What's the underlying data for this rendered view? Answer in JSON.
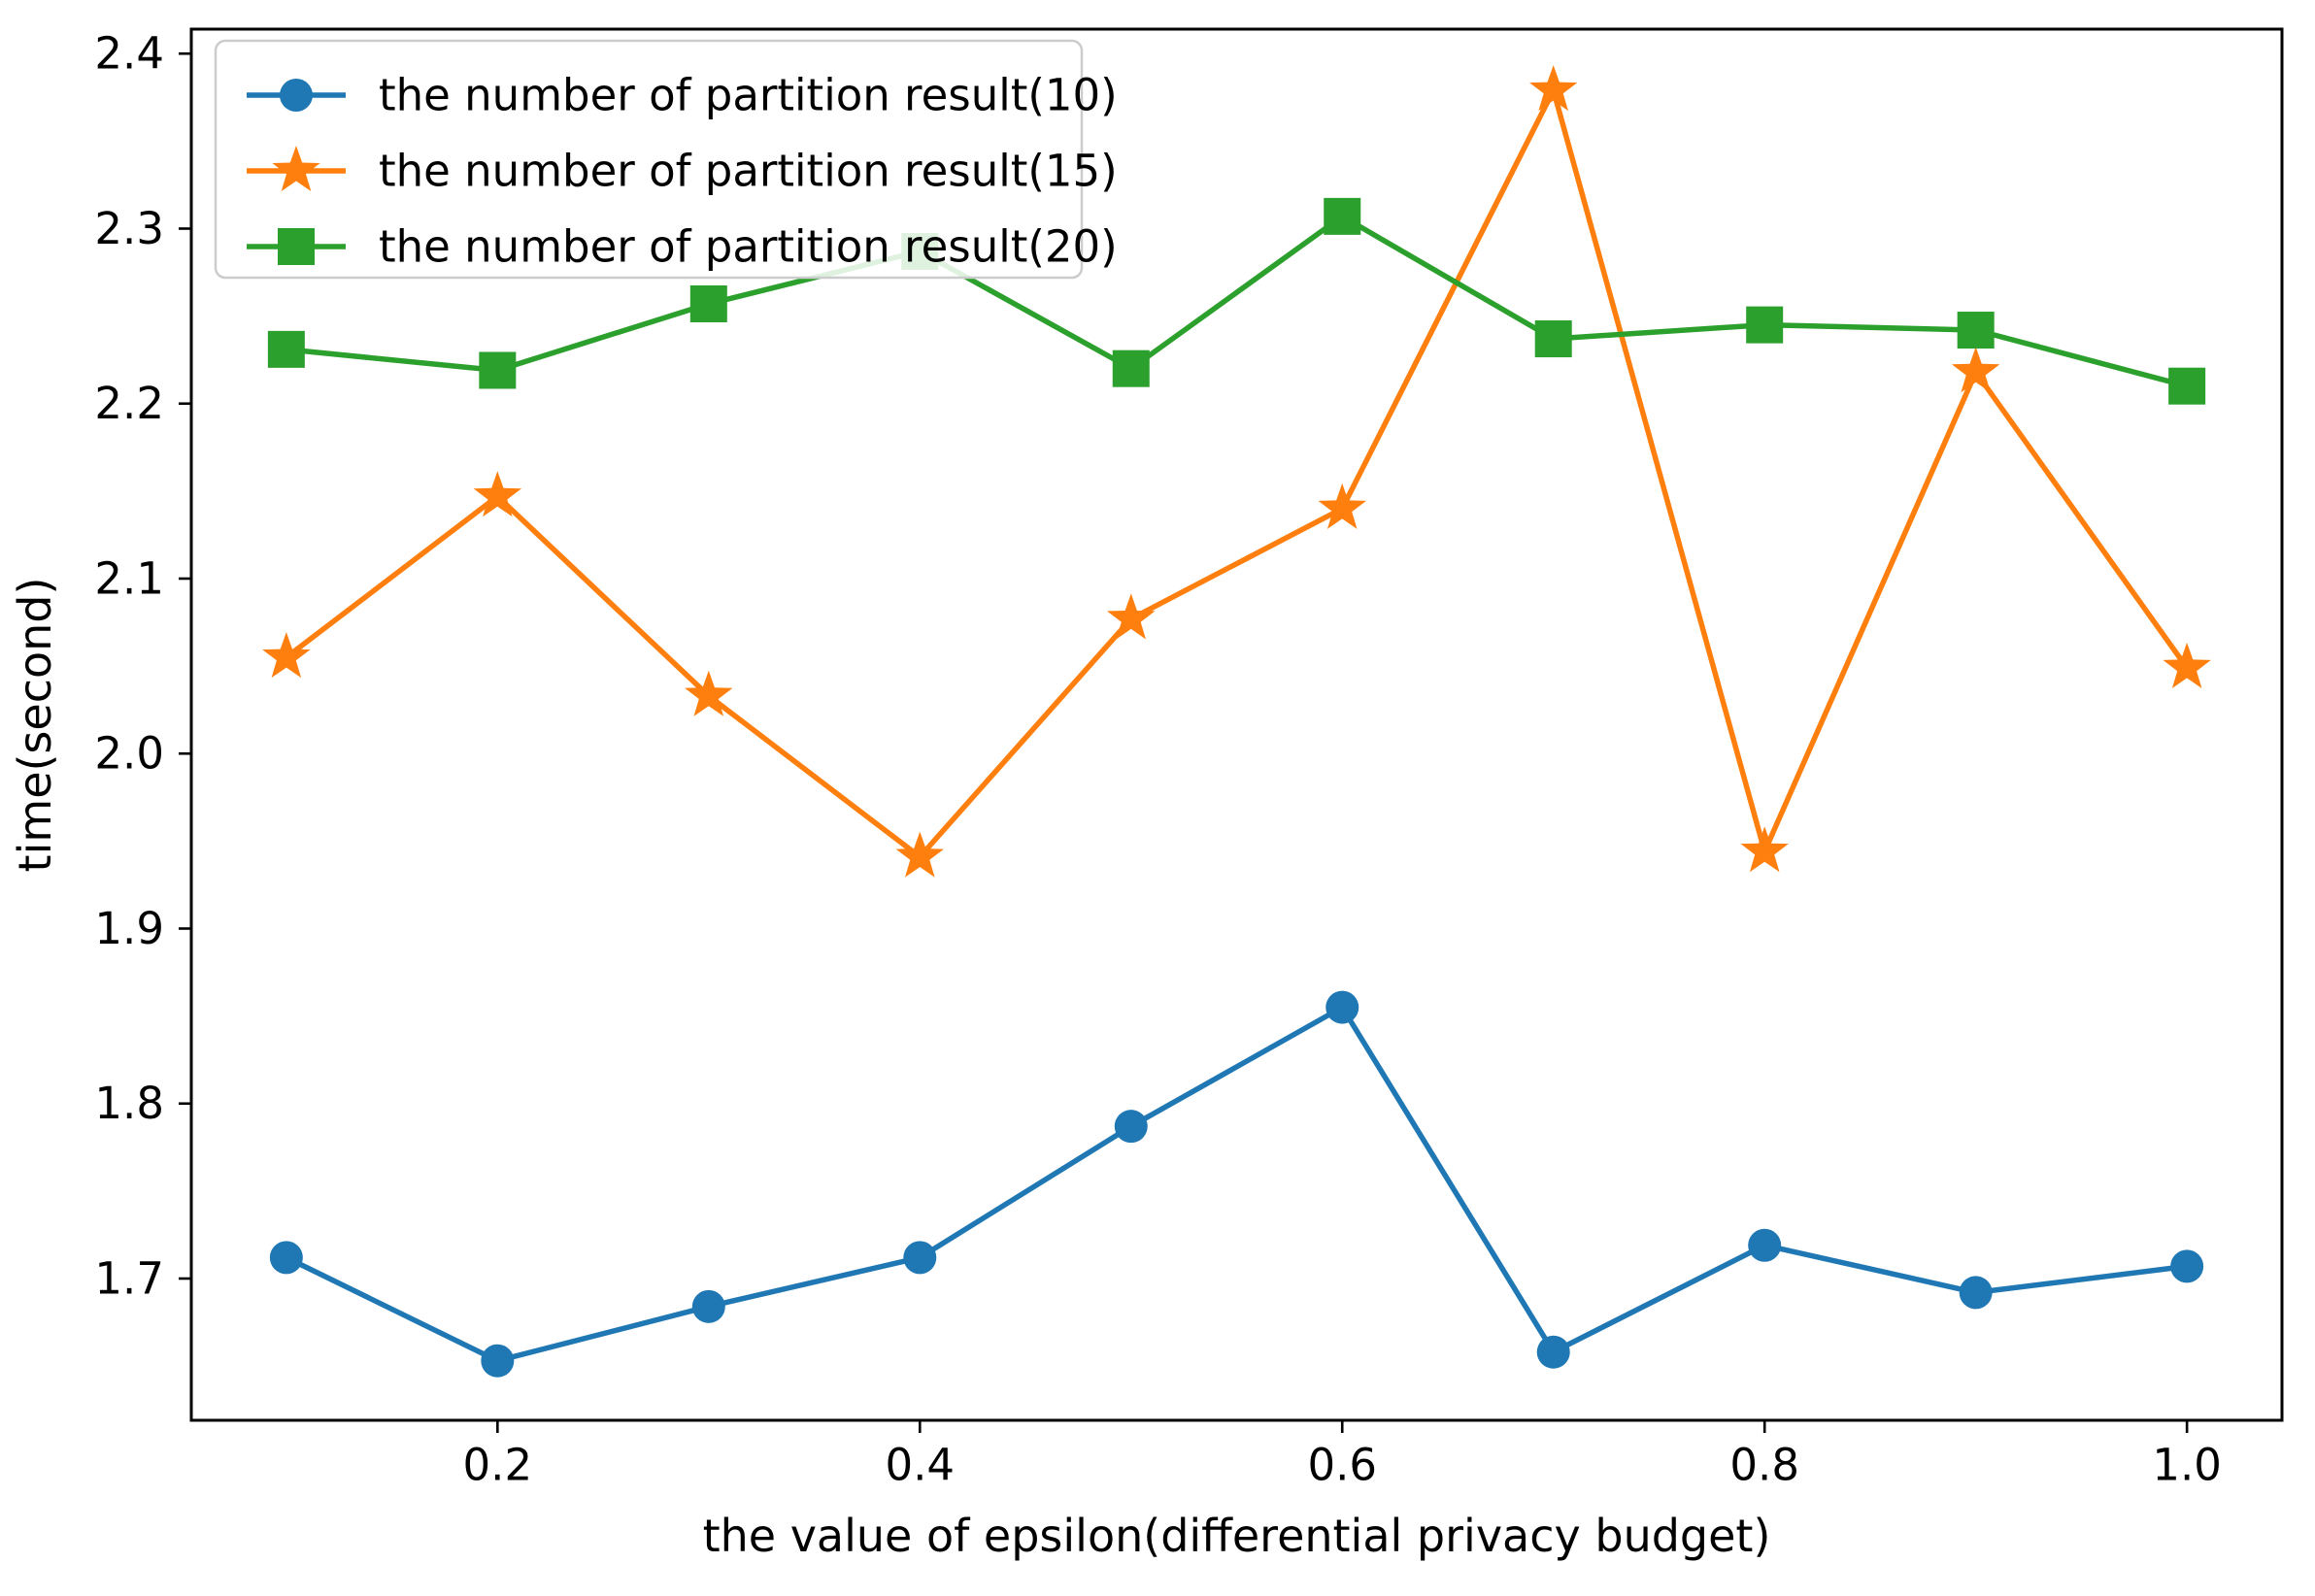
{
  "chart_data": {
    "type": "line",
    "title": "",
    "xlabel": "the value of epsilon(differential privacy budget)",
    "ylabel": "time(second)",
    "x": [
      0.1,
      0.2,
      0.3,
      0.4,
      0.5,
      0.6,
      0.7,
      0.8,
      0.9,
      1.0
    ],
    "series": [
      {
        "name": "the number of partition result(10)",
        "color": "#1f77b4",
        "marker": "circle",
        "values": [
          1.712,
          1.653,
          1.684,
          1.712,
          1.787,
          1.855,
          1.658,
          1.719,
          1.692,
          1.707
        ]
      },
      {
        "name": "the number of partition result(15)",
        "color": "#ff7f0e",
        "marker": "star",
        "values": [
          2.055,
          2.147,
          2.033,
          1.941,
          2.077,
          2.14,
          2.379,
          1.944,
          2.218,
          2.049
        ]
      },
      {
        "name": "the number of partition result(20)",
        "color": "#2ca02c",
        "marker": "square",
        "values": [
          2.231,
          2.219,
          2.257,
          2.287,
          2.22,
          2.307,
          2.237,
          2.245,
          2.242,
          2.21
        ]
      }
    ],
    "xticks": [
      0.2,
      0.4,
      0.6,
      0.8,
      1.0
    ],
    "xtick_labels": [
      "0.2",
      "0.4",
      "0.6",
      "0.8",
      "1.0"
    ],
    "yticks": [
      1.7,
      1.8,
      1.9,
      2.0,
      2.1,
      2.2,
      2.3,
      2.4
    ],
    "ytick_labels": [
      "1.7",
      "1.8",
      "1.9",
      "2.0",
      "2.1",
      "2.2",
      "2.3",
      "2.4"
    ],
    "xlim": [
      0.055,
      1.045
    ],
    "ylim": [
      1.619,
      2.414
    ],
    "grid": false,
    "legend_position": "upper-left",
    "frame_color": "#000000",
    "legend_border_color": "#cccccc"
  }
}
